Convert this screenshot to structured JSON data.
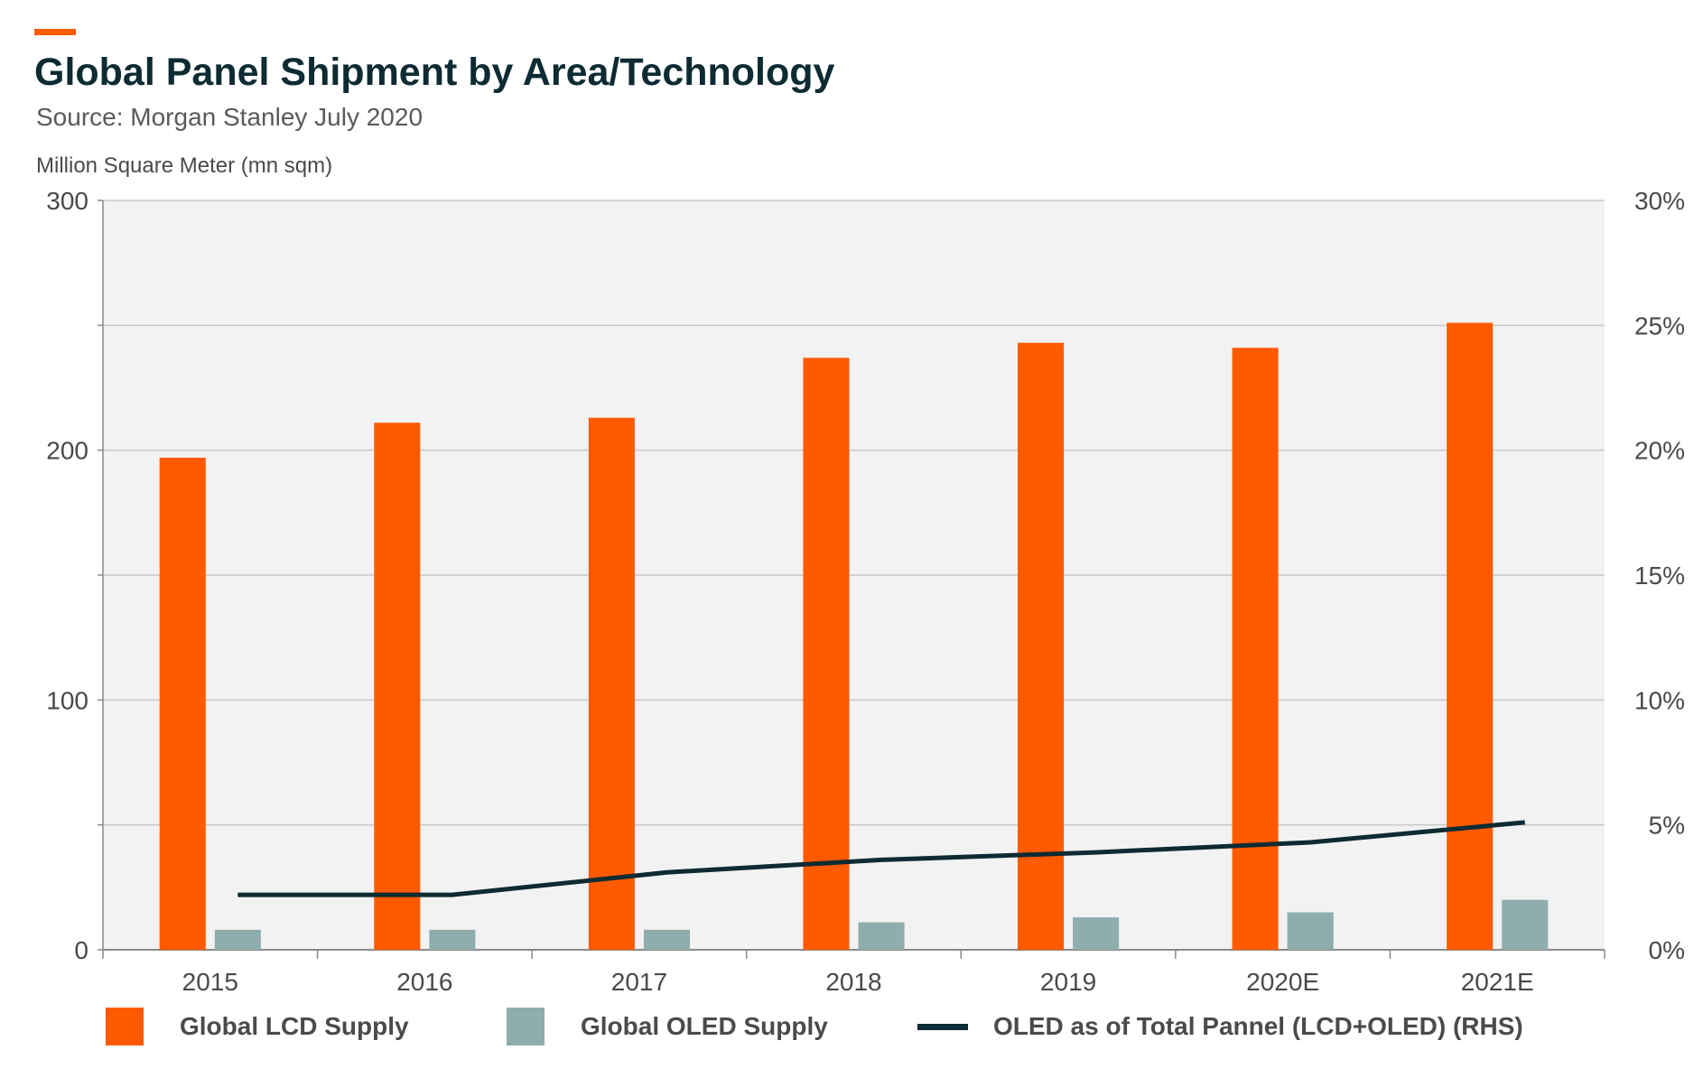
{
  "header": {
    "title": "Global Panel Shipment by Area/Technology",
    "source": "Source: Morgan Stanley July 2020",
    "unit": "Million Square Meter (mn sqm)"
  },
  "colors": {
    "accent": "#ff5a00",
    "lcd": "#ff5a00",
    "oled": "#8fadad",
    "line": "#0d2b32",
    "plot_bg": "#f2f2f2",
    "grid": "#c8c8c8"
  },
  "chart_data": {
    "type": "bar",
    "title": "Global Panel Shipment by Area/Technology",
    "ylabel": "Million Square Meter (mn sqm)",
    "categories": [
      "2015",
      "2016",
      "2017",
      "2018",
      "2019",
      "2020E",
      "2021E"
    ],
    "ylim": [
      0,
      300
    ],
    "y_ticks": [
      "0",
      "100",
      "200",
      "300"
    ],
    "y2lim": [
      0,
      30
    ],
    "y2_ticks": [
      "0%",
      "5%",
      "10%",
      "15%",
      "20%",
      "25%",
      "30%"
    ],
    "grid": true,
    "legend_position": "bottom",
    "series": [
      {
        "name": "Global LCD Supply",
        "type": "bar",
        "axis": "left",
        "values": [
          197,
          211,
          213,
          237,
          243,
          241,
          251
        ]
      },
      {
        "name": "Global OLED Supply",
        "type": "bar",
        "axis": "left",
        "values": [
          8,
          8,
          8,
          11,
          13,
          15,
          20
        ]
      },
      {
        "name": "OLED as of Total Pannel (LCD+OLED) (RHS)",
        "type": "line",
        "axis": "right",
        "values": [
          2.2,
          2.2,
          3.1,
          3.6,
          3.9,
          4.3,
          5.1
        ]
      }
    ]
  }
}
